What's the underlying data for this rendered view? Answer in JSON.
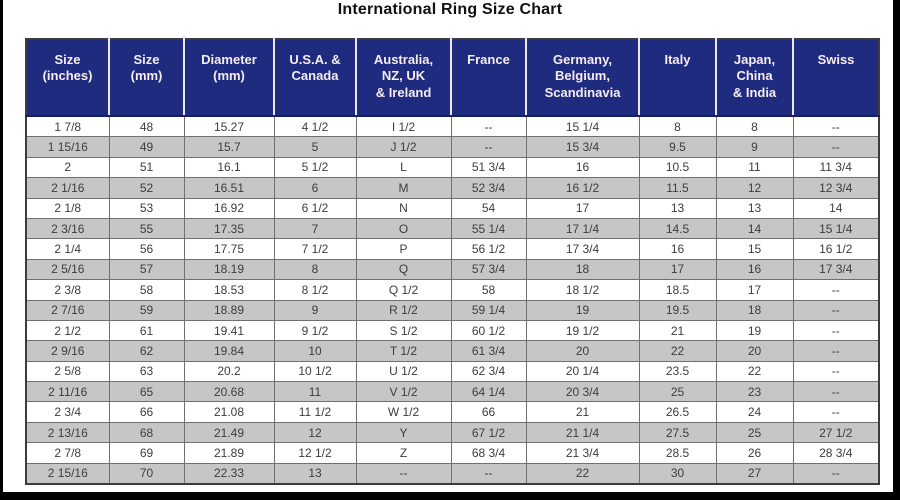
{
  "page": {
    "title": "International Ring Size Chart"
  },
  "colors": {
    "header_bg": "#1e2b7e",
    "header_text": "#f7ecf2",
    "row_alt_gray": "#c6c6c6",
    "row_base_white": "#ffffff",
    "body_text": "#3d3d3d",
    "grid_line": "#707070",
    "frame_bars": "#000000"
  },
  "chart_data": {
    "type": "table",
    "title": "International Ring Size Chart",
    "columns": [
      "Size\n(inches)",
      "Size\n(mm)",
      "Diameter\n(mm)",
      "U.S.A. &\nCanada",
      "Australia,\nNZ, UK\n& Ireland",
      "France",
      "Germany,\nBelgium,\nScandinavia",
      "Italy",
      "Japan,\nChina\n& India",
      "Swiss"
    ],
    "rows": [
      [
        "1 7/8",
        "48",
        "15.27",
        "4 1/2",
        "I 1/2",
        "--",
        "15 1/4",
        "8",
        "8",
        "--"
      ],
      [
        "1 15/16",
        "49",
        "15.7",
        "5",
        "J 1/2",
        "--",
        "15 3/4",
        "9.5",
        "9",
        "--"
      ],
      [
        "2",
        "51",
        "16.1",
        "5 1/2",
        "L",
        "51 3/4",
        "16",
        "10.5",
        "11",
        "11 3/4"
      ],
      [
        "2 1/16",
        "52",
        "16.51",
        "6",
        "M",
        "52 3/4",
        "16 1/2",
        "11.5",
        "12",
        "12 3/4"
      ],
      [
        "2 1/8",
        "53",
        "16.92",
        "6 1/2",
        "N",
        "54",
        "17",
        "13",
        "13",
        "14"
      ],
      [
        "2 3/16",
        "55",
        "17.35",
        "7",
        "O",
        "55 1/4",
        "17 1/4",
        "14.5",
        "14",
        "15 1/4"
      ],
      [
        "2 1/4",
        "56",
        "17.75",
        "7 1/2",
        "P",
        "56 1/2",
        "17 3/4",
        "16",
        "15",
        "16 1/2"
      ],
      [
        "2 5/16",
        "57",
        "18.19",
        "8",
        "Q",
        "57 3/4",
        "18",
        "17",
        "16",
        "17 3/4"
      ],
      [
        "2 3/8",
        "58",
        "18.53",
        "8 1/2",
        "Q 1/2",
        "58",
        "18 1/2",
        "18.5",
        "17",
        "--"
      ],
      [
        "2 7/16",
        "59",
        "18.89",
        "9",
        "R 1/2",
        "59 1/4",
        "19",
        "19.5",
        "18",
        "--"
      ],
      [
        "2 1/2",
        "61",
        "19.41",
        "9 1/2",
        "S 1/2",
        "60 1/2",
        "19 1/2",
        "21",
        "19",
        "--"
      ],
      [
        "2 9/16",
        "62",
        "19.84",
        "10",
        "T 1/2",
        "61 3/4",
        "20",
        "22",
        "20",
        "--"
      ],
      [
        "2 5/8",
        "63",
        "20.2",
        "10 1/2",
        "U 1/2",
        "62 3/4",
        "20 1/4",
        "23.5",
        "22",
        "--"
      ],
      [
        "2 11/16",
        "65",
        "20.68",
        "11",
        "V 1/2",
        "64 1/4",
        "20 3/4",
        "25",
        "23",
        "--"
      ],
      [
        "2 3/4",
        "66",
        "21.08",
        "11 1/2",
        "W 1/2",
        "66",
        "21",
        "26.5",
        "24",
        "--"
      ],
      [
        "2 13/16",
        "68",
        "21.49",
        "12",
        "Y",
        "67 1/2",
        "21 1/4",
        "27.5",
        "25",
        "27 1/2"
      ],
      [
        "2 7/8",
        "69",
        "21.89",
        "12 1/2",
        "Z",
        "68 3/4",
        "21 3/4",
        "28.5",
        "26",
        "28 3/4"
      ],
      [
        "2 15/16",
        "70",
        "22.33",
        "13",
        "--",
        "--",
        "22",
        "30",
        "27",
        "--"
      ]
    ]
  }
}
